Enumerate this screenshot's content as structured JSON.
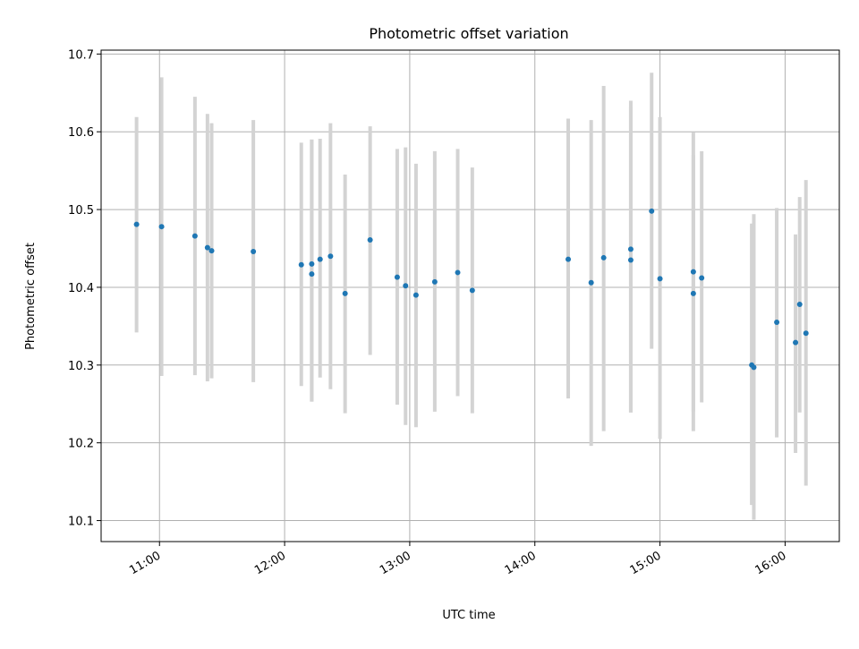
{
  "chart_data": {
    "type": "scatter",
    "title": "Photometric offset variation",
    "xlabel": "UTC time",
    "ylabel": "Photometric offset",
    "xlim": [
      "10:32",
      "16:26"
    ],
    "ylim": [
      10.073,
      10.705
    ],
    "grid": true,
    "x_ticks": [
      "11:00",
      "12:00",
      "13:00",
      "14:00",
      "15:00",
      "16:00"
    ],
    "y_ticks": [
      10.1,
      10.2,
      10.3,
      10.4,
      10.5,
      10.6,
      10.7
    ],
    "y_tick_labels": [
      "10.1",
      "10.2",
      "10.3",
      "10.4",
      "10.5",
      "10.6",
      "10.7"
    ],
    "colors": {
      "marker": "#1f77b4",
      "errorbar": "#d3d3d3",
      "grid": "#b0b0b0"
    },
    "series": [
      {
        "points": [
          {
            "x": "10:49",
            "y": 10.481,
            "ylow": 10.342,
            "yhigh": 10.619
          },
          {
            "x": "11:01",
            "y": 10.478,
            "ylow": 10.286,
            "yhigh": 10.67
          },
          {
            "x": "11:17",
            "y": 10.466,
            "ylow": 10.287,
            "yhigh": 10.645
          },
          {
            "x": "11:23",
            "y": 10.451,
            "ylow": 10.279,
            "yhigh": 10.623
          },
          {
            "x": "11:25",
            "y": 10.447,
            "ylow": 10.283,
            "yhigh": 10.611
          },
          {
            "x": "11:45",
            "y": 10.446,
            "ylow": 10.278,
            "yhigh": 10.615
          },
          {
            "x": "12:08",
            "y": 10.429,
            "ylow": 10.273,
            "yhigh": 10.586
          },
          {
            "x": "12:13",
            "y": 10.43,
            "ylow": 10.253,
            "yhigh": 10.59
          },
          {
            "x": "12:13",
            "y": 10.417,
            "ylow": 10.253,
            "yhigh": 10.59
          },
          {
            "x": "12:17",
            "y": 10.436,
            "ylow": 10.284,
            "yhigh": 10.591
          },
          {
            "x": "12:22",
            "y": 10.44,
            "ylow": 10.269,
            "yhigh": 10.611
          },
          {
            "x": "12:29",
            "y": 10.392,
            "ylow": 10.238,
            "yhigh": 10.545
          },
          {
            "x": "12:41",
            "y": 10.461,
            "ylow": 10.313,
            "yhigh": 10.607
          },
          {
            "x": "12:54",
            "y": 10.413,
            "ylow": 10.249,
            "yhigh": 10.578
          },
          {
            "x": "12:58",
            "y": 10.402,
            "ylow": 10.223,
            "yhigh": 10.58
          },
          {
            "x": "13:03",
            "y": 10.39,
            "ylow": 10.22,
            "yhigh": 10.559
          },
          {
            "x": "13:12",
            "y": 10.407,
            "ylow": 10.24,
            "yhigh": 10.575
          },
          {
            "x": "13:23",
            "y": 10.419,
            "ylow": 10.26,
            "yhigh": 10.578
          },
          {
            "x": "13:30",
            "y": 10.396,
            "ylow": 10.238,
            "yhigh": 10.554
          },
          {
            "x": "14:16",
            "y": 10.436,
            "ylow": 10.257,
            "yhigh": 10.617
          },
          {
            "x": "14:27",
            "y": 10.406,
            "ylow": 10.196,
            "yhigh": 10.615
          },
          {
            "x": "14:33",
            "y": 10.438,
            "ylow": 10.215,
            "yhigh": 10.659
          },
          {
            "x": "14:46",
            "y": 10.435,
            "ylow": 10.239,
            "yhigh": 10.632
          },
          {
            "x": "14:46",
            "y": 10.449,
            "ylow": 10.239,
            "yhigh": 10.64
          },
          {
            "x": "14:56",
            "y": 10.498,
            "ylow": 10.321,
            "yhigh": 10.676
          },
          {
            "x": "15:00",
            "y": 10.411,
            "ylow": 10.205,
            "yhigh": 10.619
          },
          {
            "x": "15:16",
            "y": 10.42,
            "ylow": 10.24,
            "yhigh": 10.599
          },
          {
            "x": "15:16",
            "y": 10.392,
            "ylow": 10.215,
            "yhigh": 10.57
          },
          {
            "x": "15:20",
            "y": 10.412,
            "ylow": 10.252,
            "yhigh": 10.575
          },
          {
            "x": "15:44",
            "y": 10.3,
            "ylow": 10.12,
            "yhigh": 10.482
          },
          {
            "x": "15:45",
            "y": 10.297,
            "ylow": 10.101,
            "yhigh": 10.494
          },
          {
            "x": "15:56",
            "y": 10.355,
            "ylow": 10.207,
            "yhigh": 10.502
          },
          {
            "x": "16:05",
            "y": 10.329,
            "ylow": 10.187,
            "yhigh": 10.468
          },
          {
            "x": "16:07",
            "y": 10.378,
            "ylow": 10.239,
            "yhigh": 10.516
          },
          {
            "x": "16:10",
            "y": 10.341,
            "ylow": 10.145,
            "yhigh": 10.538
          }
        ]
      }
    ]
  }
}
